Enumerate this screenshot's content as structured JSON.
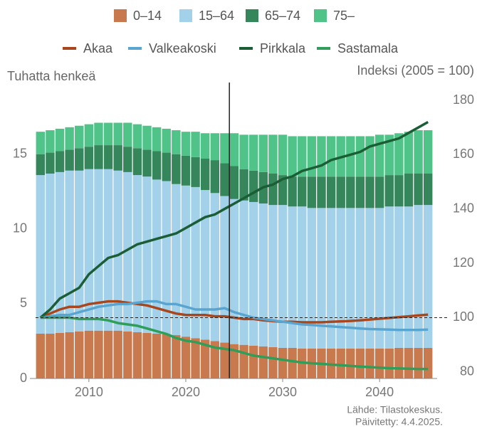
{
  "chart_data": {
    "type": "bar",
    "stacked": true,
    "y_label": "Tuhatta henkeä",
    "y2_label": "Indeksi (2005 = 100)",
    "source": "Lähde: Tilastokeskus.",
    "updated": "Päivitetty: 4.4.2025.",
    "x": [
      2005,
      2006,
      2007,
      2008,
      2009,
      2010,
      2011,
      2012,
      2013,
      2014,
      2015,
      2016,
      2017,
      2018,
      2019,
      2020,
      2021,
      2022,
      2023,
      2024,
      2025,
      2026,
      2027,
      2028,
      2029,
      2030,
      2031,
      2032,
      2033,
      2034,
      2035,
      2036,
      2037,
      2038,
      2039,
      2040,
      2041,
      2042,
      2043,
      2044,
      2045
    ],
    "xlim": [
      2004.5,
      2045.5
    ],
    "xticks": [
      2010,
      2020,
      2030,
      2040
    ],
    "ylim": [
      0,
      18.6
    ],
    "yticks": [
      0,
      5,
      10,
      15
    ],
    "y2lim": [
      77.6,
      180
    ],
    "y2ticks": [
      80,
      100,
      120,
      140,
      160,
      180
    ],
    "vline_x": 2024.5,
    "hline_y2": 100,
    "series": [
      {
        "name": "0–14",
        "type": "bar",
        "color": "#c87a4e",
        "values": [
          3.0,
          3.0,
          3.05,
          3.1,
          3.15,
          3.2,
          3.2,
          3.2,
          3.2,
          3.15,
          3.1,
          3.05,
          3.0,
          2.95,
          2.9,
          2.8,
          2.7,
          2.6,
          2.5,
          2.4,
          2.3,
          2.25,
          2.2,
          2.15,
          2.1,
          2.05,
          2.05,
          2.0,
          2.0,
          2.0,
          2.0,
          2.0,
          2.0,
          2.0,
          2.0,
          2.0,
          2.0,
          2.05,
          2.05,
          2.05,
          2.05
        ]
      },
      {
        "name": "15–64",
        "type": "bar",
        "color": "#a3d1ea",
        "values": [
          10.6,
          10.7,
          10.75,
          10.8,
          10.75,
          10.8,
          10.8,
          10.8,
          10.7,
          10.65,
          10.5,
          10.45,
          10.3,
          10.25,
          10.1,
          10.1,
          10.1,
          10.0,
          9.9,
          9.8,
          9.7,
          9.65,
          9.6,
          9.55,
          9.5,
          9.55,
          9.45,
          9.5,
          9.4,
          9.4,
          9.4,
          9.4,
          9.4,
          9.4,
          9.4,
          9.4,
          9.5,
          9.45,
          9.45,
          9.55,
          9.55
        ]
      },
      {
        "name": "65–74",
        "type": "bar",
        "color": "#35865a",
        "values": [
          1.4,
          1.4,
          1.4,
          1.4,
          1.5,
          1.5,
          1.6,
          1.6,
          1.7,
          1.7,
          1.8,
          1.8,
          1.9,
          1.9,
          2.0,
          2.0,
          2.0,
          2.1,
          2.2,
          2.2,
          2.2,
          2.1,
          2.1,
          2.1,
          2.1,
          2.0,
          2.0,
          2.0,
          2.1,
          2.1,
          2.1,
          2.1,
          2.1,
          2.1,
          2.1,
          2.1,
          2.1,
          2.1,
          2.2,
          2.1,
          2.1
        ]
      },
      {
        "name": "75–",
        "type": "bar",
        "color": "#50c488",
        "values": [
          1.5,
          1.5,
          1.5,
          1.5,
          1.5,
          1.5,
          1.5,
          1.5,
          1.5,
          1.6,
          1.6,
          1.6,
          1.6,
          1.6,
          1.6,
          1.6,
          1.7,
          1.7,
          1.8,
          2.0,
          2.2,
          2.3,
          2.4,
          2.5,
          2.6,
          2.7,
          2.7,
          2.7,
          2.7,
          2.7,
          2.7,
          2.7,
          2.7,
          2.7,
          2.7,
          2.8,
          2.7,
          2.8,
          2.8,
          2.9,
          2.9
        ]
      },
      {
        "name": "Akaa",
        "type": "line",
        "axis": "y2",
        "color": "#a8461e",
        "values": [
          100,
          101.5,
          103,
          104,
          104,
          105,
          105.5,
          106,
          106,
          105.5,
          105,
          104.5,
          103.5,
          102.5,
          101.5,
          101,
          101,
          101,
          100.5,
          100.5,
          100,
          99.5,
          99.5,
          99,
          98.7,
          98.5,
          98.5,
          98.3,
          98.3,
          98.3,
          98.5,
          98.6,
          98.8,
          99,
          99.3,
          99.6,
          99.9,
          100.2,
          100.5,
          100.8,
          101.1
        ]
      },
      {
        "name": "Valkeakoski",
        "type": "line",
        "axis": "y2",
        "color": "#5aa5d0",
        "values": [
          100,
          100.5,
          101,
          101,
          102,
          103,
          104,
          104.5,
          105,
          105,
          105.5,
          106,
          106,
          105,
          105,
          104,
          103,
          103,
          103,
          103.5,
          102,
          101,
          100,
          99.5,
          99,
          98.5,
          98,
          97.5,
          97.3,
          97,
          96.8,
          96.5,
          96.3,
          96,
          95.8,
          95.7,
          95.6,
          95.5,
          95.5,
          95.5,
          95.6
        ]
      },
      {
        "name": "Pirkkala",
        "type": "line",
        "axis": "y2",
        "color": "#1b5e36",
        "values": [
          100,
          103,
          107,
          109,
          111,
          116,
          119,
          122,
          123,
          125,
          127,
          128,
          129,
          130,
          131,
          133,
          135,
          137,
          138,
          140,
          142,
          144,
          146,
          148,
          149,
          151,
          152,
          154,
          155,
          156,
          158,
          159,
          160,
          161,
          163,
          164,
          165,
          166,
          168,
          170,
          172
        ]
      },
      {
        "name": "Sastamala",
        "type": "line",
        "axis": "y2",
        "color": "#2e9e58",
        "values": [
          100,
          100,
          100,
          100,
          99.5,
          99.5,
          99.5,
          99,
          98,
          97.5,
          97,
          96,
          95,
          94,
          92.5,
          91.5,
          91,
          90,
          89,
          88.5,
          88,
          87,
          86,
          85.5,
          85,
          84.5,
          84,
          83.5,
          83.2,
          83,
          82.7,
          82.5,
          82.2,
          82,
          81.8,
          81.6,
          81.4,
          81.3,
          81.2,
          81.1,
          81.1
        ]
      }
    ]
  }
}
